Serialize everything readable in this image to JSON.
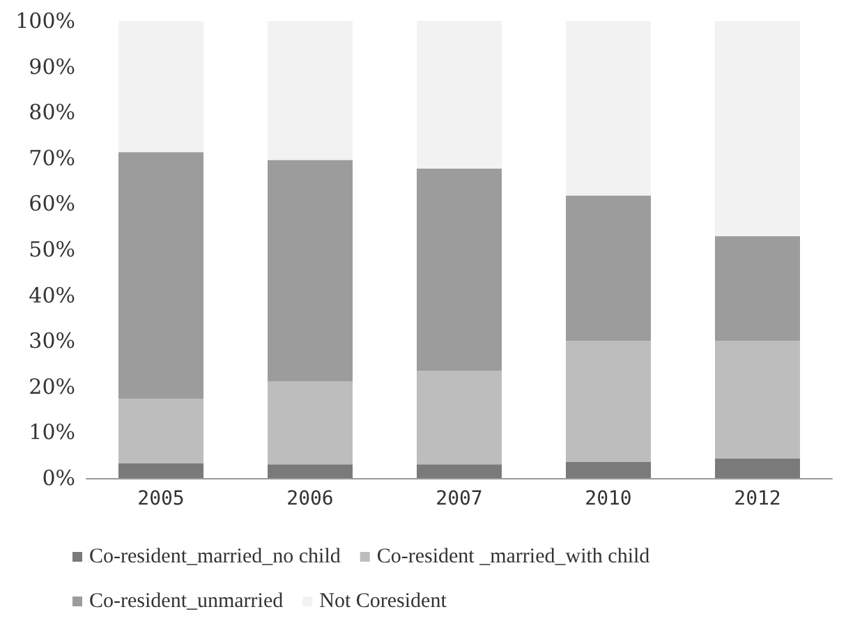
{
  "chart_data": {
    "type": "bar",
    "stacked": true,
    "categories": [
      "2005",
      "2006",
      "2007",
      "2010",
      "2012"
    ],
    "series": [
      {
        "name": "Co-resident_married_no child",
        "color": "#7a7a7a",
        "values": [
          3.2,
          3.0,
          3.0,
          3.6,
          4.3
        ]
      },
      {
        "name": "Co-resident _married_with child",
        "color": "#bdbdbd",
        "values": [
          14.1,
          18.1,
          20.4,
          26.4,
          25.7
        ]
      },
      {
        "name": "Co-resident_unmarried",
        "color": "#9c9c9c",
        "values": [
          54.0,
          48.5,
          44.3,
          31.8,
          22.9
        ]
      },
      {
        "name": "Not Coresident",
        "color": "#f2f2f2",
        "values": [
          28.7,
          30.4,
          32.3,
          38.2,
          47.1
        ]
      }
    ],
    "ylim": [
      0,
      100
    ],
    "yticks": [
      {
        "value": 0,
        "label": "0%"
      },
      {
        "value": 10,
        "label": "10%"
      },
      {
        "value": 20,
        "label": "20%"
      },
      {
        "value": 30,
        "label": "30%"
      },
      {
        "value": 40,
        "label": "40%"
      },
      {
        "value": 50,
        "label": "50%"
      },
      {
        "value": 60,
        "label": "60%"
      },
      {
        "value": 70,
        "label": "70%"
      },
      {
        "value": 80,
        "label": "80%"
      },
      {
        "value": 90,
        "label": "90%"
      },
      {
        "value": 100,
        "label": "100%"
      }
    ],
    "grid": false,
    "legend": "bottom"
  }
}
